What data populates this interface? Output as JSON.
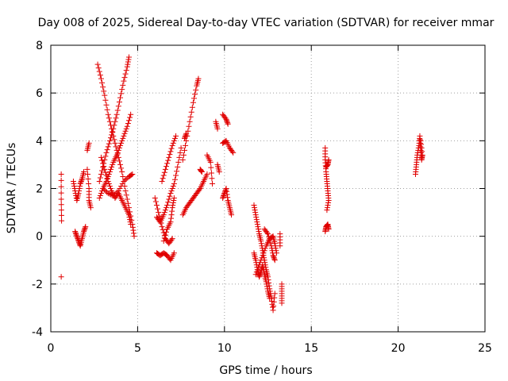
{
  "chart_data": {
    "type": "scatter",
    "title": "Day 008 of 2025, Sidereal Day-to-day VTEC variation (SDTVAR) for receiver mmar",
    "xlabel": "GPS time / hours",
    "ylabel": "SDTVAR / TECUs",
    "xlim": [
      0,
      25
    ],
    "ylim": [
      -4,
      8
    ],
    "xticks": [
      "0",
      "5",
      "10",
      "15",
      "20",
      "25"
    ],
    "yticks": [
      "-4",
      "-2",
      "0",
      "2",
      "4",
      "6",
      "8"
    ],
    "grid": true,
    "marker": "plus",
    "color": "#e00000",
    "tracks": [
      [
        [
          0.6,
          2.6
        ],
        [
          0.6,
          1.55
        ],
        [
          0.62,
          0.65
        ],
        [
          0.6,
          -1.7
        ]
      ],
      [
        [
          1.3,
          2.3
        ],
        [
          1.4,
          1.9
        ],
        [
          1.5,
          1.5
        ],
        [
          1.6,
          1.8
        ],
        [
          1.7,
          2.2
        ],
        [
          1.8,
          2.4
        ],
        [
          1.9,
          2.7
        ]
      ],
      [
        [
          1.4,
          0.2
        ],
        [
          1.5,
          0.0
        ],
        [
          1.6,
          -0.2
        ],
        [
          1.7,
          -0.4
        ],
        [
          1.8,
          -0.1
        ],
        [
          1.9,
          0.2
        ],
        [
          2.0,
          0.4
        ]
      ],
      [
        [
          2.1,
          2.8
        ],
        [
          2.2,
          2.0
        ],
        [
          2.2,
          1.5
        ],
        [
          2.3,
          1.2
        ]
      ],
      [
        [
          2.1,
          3.6
        ],
        [
          2.2,
          3.9
        ]
      ],
      [
        [
          2.7,
          7.2
        ],
        [
          2.9,
          6.6
        ],
        [
          3.1,
          5.9
        ],
        [
          3.3,
          5.1
        ],
        [
          3.5,
          4.5
        ],
        [
          3.7,
          3.9
        ],
        [
          3.9,
          3.3
        ],
        [
          4.1,
          2.7
        ],
        [
          4.3,
          1.9
        ],
        [
          4.5,
          1.2
        ],
        [
          4.7,
          0.5
        ],
        [
          4.8,
          0.0
        ]
      ],
      [
        [
          2.8,
          2.3
        ],
        [
          3.0,
          2.9
        ],
        [
          3.2,
          3.5
        ],
        [
          3.4,
          4.0
        ],
        [
          3.6,
          4.5
        ],
        [
          3.8,
          5.1
        ],
        [
          4.0,
          5.8
        ],
        [
          4.2,
          6.5
        ],
        [
          4.4,
          7.1
        ],
        [
          4.5,
          7.5
        ]
      ],
      [
        [
          2.8,
          1.6
        ],
        [
          3.0,
          2.0
        ],
        [
          3.2,
          2.3
        ],
        [
          3.4,
          2.7
        ],
        [
          3.6,
          3.1
        ],
        [
          3.8,
          3.4
        ],
        [
          4.0,
          3.8
        ],
        [
          4.2,
          4.2
        ],
        [
          4.4,
          4.6
        ],
        [
          4.6,
          5.1
        ]
      ],
      [
        [
          2.9,
          3.3
        ],
        [
          3.1,
          2.8
        ],
        [
          3.3,
          2.3
        ],
        [
          3.5,
          1.9
        ],
        [
          3.7,
          1.6
        ],
        [
          3.9,
          1.8
        ],
        [
          4.1,
          1.5
        ],
        [
          4.3,
          1.2
        ],
        [
          4.5,
          0.9
        ],
        [
          4.6,
          0.5
        ]
      ],
      [
        [
          3.0,
          2.0
        ],
        [
          3.3,
          1.8
        ],
        [
          3.6,
          1.7
        ],
        [
          3.9,
          1.9
        ],
        [
          4.2,
          2.3
        ],
        [
          4.5,
          2.5
        ],
        [
          4.7,
          2.6
        ]
      ],
      [
        [
          6.0,
          1.6
        ],
        [
          6.2,
          1.0
        ],
        [
          6.4,
          0.4
        ],
        [
          6.6,
          -0.1
        ],
        [
          6.8,
          -0.3
        ],
        [
          7.0,
          -0.1
        ]
      ],
      [
        [
          6.1,
          0.8
        ],
        [
          6.3,
          0.6
        ],
        [
          6.5,
          0.9
        ],
        [
          6.7,
          1.3
        ],
        [
          6.9,
          1.8
        ],
        [
          7.1,
          2.2
        ],
        [
          7.3,
          2.9
        ],
        [
          7.5,
          3.7
        ]
      ],
      [
        [
          6.1,
          -0.7
        ],
        [
          6.3,
          -0.8
        ],
        [
          6.5,
          -0.7
        ],
        [
          6.7,
          -0.8
        ],
        [
          6.9,
          -1.0
        ],
        [
          7.1,
          -0.7
        ]
      ],
      [
        [
          6.4,
          2.3
        ],
        [
          6.6,
          2.8
        ],
        [
          6.8,
          3.3
        ],
        [
          7.0,
          3.8
        ],
        [
          7.2,
          4.2
        ]
      ],
      [
        [
          6.5,
          -0.2
        ],
        [
          6.7,
          0.3
        ],
        [
          6.9,
          0.6
        ],
        [
          7.0,
          1.2
        ],
        [
          7.1,
          1.6
        ]
      ],
      [
        [
          7.6,
          0.9
        ],
        [
          7.8,
          1.2
        ],
        [
          8.0,
          1.4
        ],
        [
          8.2,
          1.6
        ],
        [
          8.4,
          1.8
        ],
        [
          8.6,
          2.0
        ],
        [
          8.8,
          2.3
        ],
        [
          9.0,
          2.6
        ]
      ],
      [
        [
          7.6,
          3.2
        ],
        [
          7.8,
          4.0
        ],
        [
          8.0,
          4.8
        ],
        [
          8.2,
          5.6
        ],
        [
          8.4,
          6.3
        ],
        [
          8.5,
          6.6
        ]
      ],
      [
        [
          7.7,
          4.1
        ],
        [
          7.8,
          4.3
        ]
      ],
      [
        [
          8.6,
          2.8
        ],
        [
          8.7,
          2.7
        ]
      ],
      [
        [
          9.0,
          3.4
        ],
        [
          9.2,
          3.1
        ],
        [
          9.3,
          2.2
        ]
      ],
      [
        [
          9.5,
          4.8
        ],
        [
          9.6,
          4.5
        ],
        [
          9.6,
          3.0
        ],
        [
          9.7,
          2.7
        ]
      ],
      [
        [
          9.9,
          5.1
        ],
        [
          10.1,
          4.9
        ],
        [
          10.2,
          4.7
        ]
      ],
      [
        [
          9.9,
          3.9
        ],
        [
          10.1,
          4.0
        ],
        [
          10.3,
          3.7
        ],
        [
          10.5,
          3.5
        ]
      ],
      [
        [
          9.9,
          1.6
        ],
        [
          10.0,
          1.8
        ],
        [
          10.1,
          2.0
        ],
        [
          10.2,
          1.5
        ],
        [
          10.3,
          1.2
        ],
        [
          10.4,
          0.9
        ]
      ],
      [
        [
          11.7,
          1.3
        ],
        [
          11.8,
          0.9
        ],
        [
          11.9,
          0.5
        ],
        [
          12.0,
          0.1
        ],
        [
          12.1,
          -0.2
        ],
        [
          12.2,
          -0.6
        ],
        [
          12.3,
          -1.0
        ],
        [
          12.4,
          -1.4
        ],
        [
          12.5,
          -1.7
        ],
        [
          12.6,
          -2.2
        ],
        [
          12.7,
          -2.6
        ],
        [
          12.8,
          -3.1
        ],
        [
          12.9,
          -2.4
        ]
      ],
      [
        [
          11.7,
          -0.7
        ],
        [
          11.8,
          -1.0
        ],
        [
          11.9,
          -1.4
        ],
        [
          12.0,
          -1.7
        ],
        [
          12.1,
          -1.5
        ],
        [
          12.2,
          -1.2
        ],
        [
          12.3,
          -1.6
        ],
        [
          12.4,
          -1.9
        ],
        [
          12.5,
          -2.3
        ],
        [
          12.6,
          -2.6
        ]
      ],
      [
        [
          11.8,
          -1.6
        ],
        [
          12.0,
          -1.2
        ],
        [
          12.2,
          -0.8
        ],
        [
          12.4,
          -0.4
        ],
        [
          12.6,
          -0.1
        ],
        [
          12.8,
          0.0
        ],
        [
          12.9,
          -0.3
        ],
        [
          13.0,
          -0.7
        ]
      ],
      [
        [
          12.3,
          0.3
        ],
        [
          12.5,
          0.1
        ],
        [
          12.7,
          -0.4
        ],
        [
          12.8,
          -0.8
        ],
        [
          12.9,
          -1.0
        ]
      ],
      [
        [
          13.2,
          0.1
        ],
        [
          13.2,
          -0.4
        ],
        [
          13.3,
          -2.0
        ],
        [
          13.3,
          -2.4
        ],
        [
          13.3,
          -2.8
        ]
      ],
      [
        [
          15.8,
          3.7
        ],
        [
          15.8,
          3.2
        ],
        [
          15.85,
          2.7
        ],
        [
          15.9,
          2.3
        ],
        [
          15.95,
          1.9
        ],
        [
          16.0,
          1.5
        ],
        [
          15.9,
          1.1
        ],
        [
          15.85,
          2.9
        ],
        [
          15.95,
          3.0
        ],
        [
          16.0,
          3.2
        ]
      ],
      [
        [
          15.8,
          0.2
        ],
        [
          15.85,
          0.4
        ],
        [
          15.95,
          0.5
        ],
        [
          16.0,
          0.3
        ]
      ],
      [
        [
          21.0,
          2.6
        ],
        [
          21.05,
          3.0
        ],
        [
          21.1,
          3.4
        ],
        [
          21.2,
          3.8
        ],
        [
          21.25,
          4.2
        ],
        [
          21.3,
          3.6
        ],
        [
          21.35,
          3.2
        ],
        [
          21.4,
          3.4
        ],
        [
          21.3,
          4.0
        ]
      ]
    ]
  }
}
